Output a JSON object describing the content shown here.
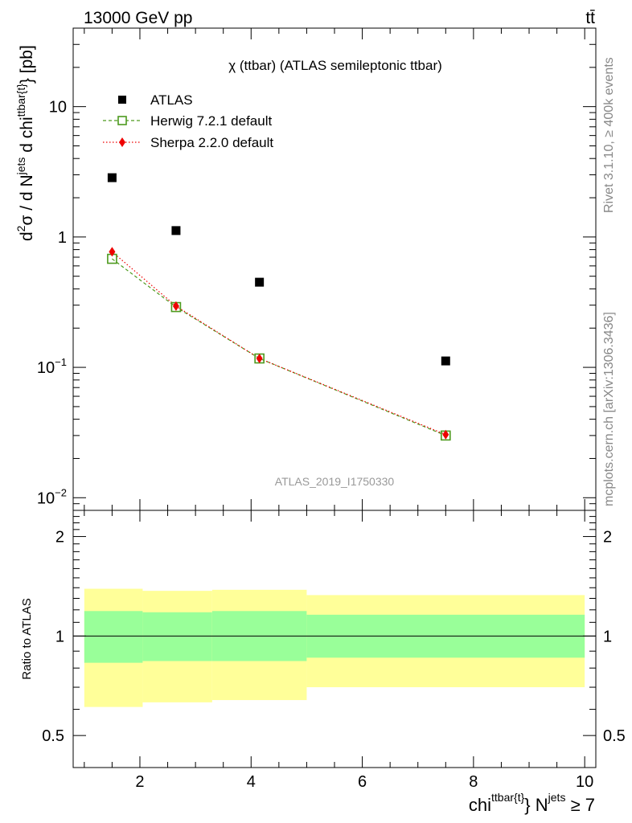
{
  "header": {
    "energy_label": "13000 GeV pp",
    "process_label": "tt̄"
  },
  "side_labels": {
    "rivet": "Rivet 3.1.10, ≥ 400k events",
    "mcplots": "mcplots.cern.ch [arXiv:1306.3436]"
  },
  "chart_data": [
    {
      "type": "scatter",
      "title": "χ (ttbar) (ATLAS semileptonic ttbar)",
      "watermark": "ATLAS_2019_I1750330",
      "ylabel": {
        "base": "d",
        "sup1": "2",
        "mid": "σ / d N",
        "sup2": "jets",
        "mid2": " d chi",
        "sup3": "ttbar{t}",
        "tail": "} [pb]"
      },
      "yscale": "log",
      "ylim": [
        0.008,
        40
      ],
      "xlim": [
        0.8,
        10.2
      ],
      "y_ticks": [
        {
          "v": 0.01,
          "base": "10",
          "exp": "−2"
        },
        {
          "v": 0.1,
          "base": "10",
          "exp": "−1"
        },
        {
          "v": 1,
          "base": "1",
          "exp": ""
        },
        {
          "v": 10,
          "base": "10",
          "exp": ""
        }
      ],
      "legend_placement": "top-left",
      "series": [
        {
          "name": "ATLAS",
          "color": "#000000",
          "marker": "square",
          "x": [
            1.5,
            2.65,
            4.15,
            7.5
          ],
          "y": [
            2.85,
            1.12,
            0.45,
            0.112
          ]
        },
        {
          "name": "Herwig 7.2.1 default",
          "color": "#4d9a1e",
          "marker": "open-square",
          "line": "dashed",
          "x": [
            1.5,
            2.65,
            4.15,
            7.5
          ],
          "y": [
            0.68,
            0.29,
            0.117,
            0.03
          ]
        },
        {
          "name": "Sherpa 2.2.0 default",
          "color": "#ee0000",
          "marker": "diamond",
          "line": "dotted",
          "x": [
            1.5,
            2.65,
            4.15,
            7.5
          ],
          "y": [
            0.77,
            0.295,
            0.117,
            0.0305
          ]
        }
      ]
    },
    {
      "type": "area",
      "ylabel": "Ratio to ATLAS",
      "xlabel": {
        "base": "chi",
        "sup1": "ttbar{t}",
        "mid": "} N",
        "sup2": "jets",
        "tail": " ≥ 7"
      },
      "yscale": "log",
      "ylim": [
        0.4,
        2.4
      ],
      "xlim": [
        0.8,
        10.2
      ],
      "y_ticks": [
        {
          "v": 0.5,
          "label": "0.5"
        },
        {
          "v": 1,
          "label": "1"
        },
        {
          "v": 2,
          "label": "2"
        }
      ],
      "x_ticks": [
        {
          "v": 2,
          "label": "2"
        },
        {
          "v": 4,
          "label": "4"
        },
        {
          "v": 6,
          "label": "6"
        },
        {
          "v": 8,
          "label": "8"
        },
        {
          "v": 10,
          "label": "10"
        }
      ],
      "bins": [
        {
          "x0": 1.0,
          "x1": 2.05,
          "stat_lo": 0.83,
          "stat_hi": 1.19,
          "tot_lo": 0.61,
          "tot_hi": 1.39
        },
        {
          "x0": 2.05,
          "x1": 3.3,
          "stat_lo": 0.84,
          "stat_hi": 1.18,
          "tot_lo": 0.63,
          "tot_hi": 1.37
        },
        {
          "x0": 3.3,
          "x1": 5.0,
          "stat_lo": 0.84,
          "stat_hi": 1.19,
          "tot_lo": 0.64,
          "tot_hi": 1.38
        },
        {
          "x0": 5.0,
          "x1": 10.0,
          "stat_lo": 0.86,
          "stat_hi": 1.16,
          "tot_lo": 0.7,
          "tot_hi": 1.33
        }
      ],
      "reference_line": 1,
      "colors": {
        "stat": "#99ff99",
        "total": "#ffff99"
      }
    }
  ]
}
